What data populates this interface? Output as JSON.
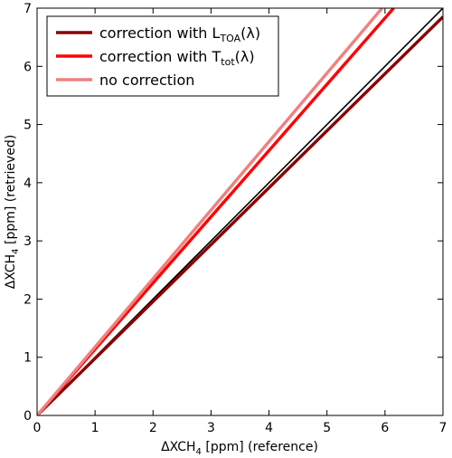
{
  "chart_data": {
    "type": "line",
    "xlabel": "ΔXCH₄ [ppm] (reference)",
    "ylabel": "ΔXCH₄ [ppm] (retrieved)",
    "xlim": [
      0,
      7
    ],
    "ylim": [
      0,
      7
    ],
    "xticks": [
      "0",
      "1",
      "2",
      "3",
      "4",
      "5",
      "6",
      "7"
    ],
    "yticks": [
      "0",
      "1",
      "2",
      "3",
      "4",
      "5",
      "6",
      "7"
    ],
    "grid": false,
    "legend_position": "top-left",
    "series": [
      {
        "name": "correction with L_TOA(λ)",
        "name_base": "correction with L",
        "name_sub": "TOA",
        "name_tail": "(λ)",
        "color": "#8b0000",
        "x": [
          0,
          7
        ],
        "y": [
          0,
          6.85
        ]
      },
      {
        "name": "correction with T_tot(λ)",
        "name_base": "correction with T",
        "name_sub": "tot",
        "name_tail": "(λ)",
        "color": "#ff0000",
        "x": [
          0,
          6.15
        ],
        "y": [
          0,
          7
        ]
      },
      {
        "name": "no correction",
        "name_base": "no correction",
        "name_sub": "",
        "name_tail": "",
        "color": "#f08080",
        "x": [
          0,
          5.95
        ],
        "y": [
          0,
          7
        ]
      },
      {
        "name": "",
        "name_base": "",
        "name_sub": "",
        "name_tail": "",
        "color": "#000000",
        "x": [
          0,
          7
        ],
        "y": [
          0,
          7
        ],
        "thin": true
      }
    ]
  }
}
